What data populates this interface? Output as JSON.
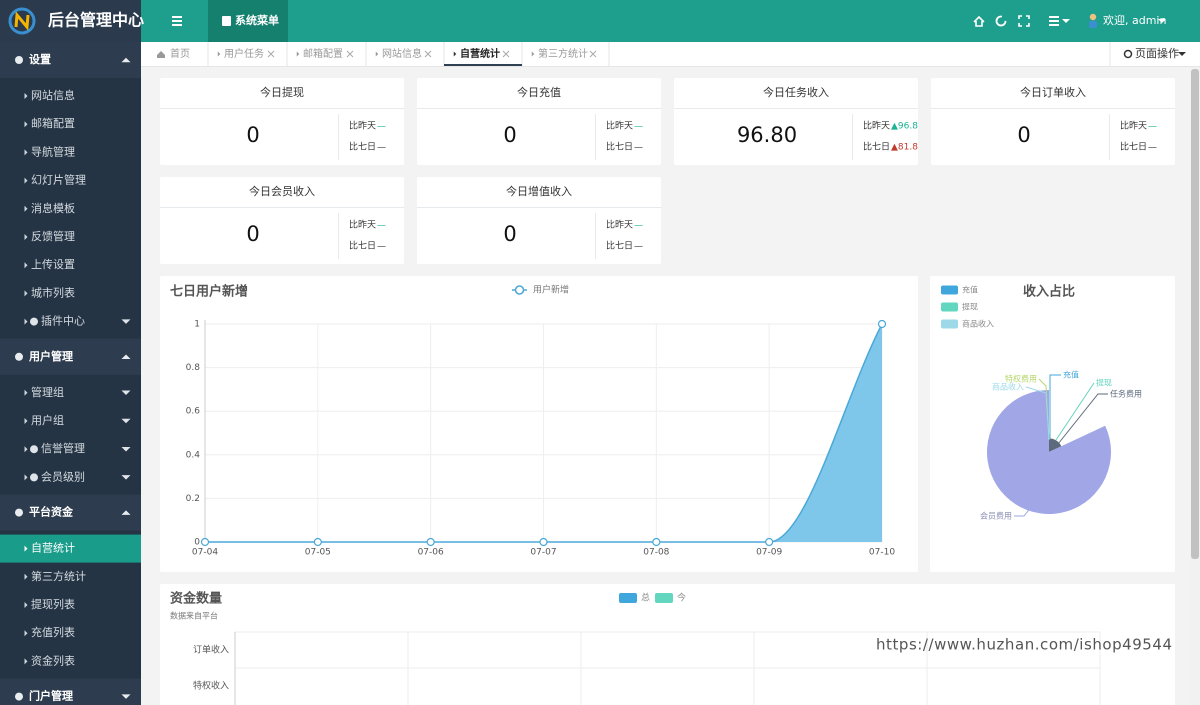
{
  "header": {
    "logo_title": "后台管理中心",
    "menu_tab": "系统菜单",
    "welcome": "欢迎, admin"
  },
  "sidebar": {
    "groups": [
      {
        "title": "设置",
        "items": [
          "网站信息",
          "邮箱配置",
          "导航管理",
          "幻灯片管理",
          "消息模板",
          "反馈管理",
          "上传设置",
          "城市列表",
          "插件中心"
        ]
      },
      {
        "title": "用户管理",
        "items": [
          "管理组",
          "用户组",
          "信誉管理",
          "会员级别"
        ]
      },
      {
        "title": "平台资金",
        "items": [
          "自营统计",
          "第三方统计",
          "提现列表",
          "充值列表",
          "资金列表"
        ]
      },
      {
        "title": "门户管理",
        "items": []
      }
    ]
  },
  "tabs": {
    "items": [
      "首页",
      "用户任务",
      "邮箱配置",
      "网站信息",
      "自营统计",
      "第三方统计"
    ],
    "actions": "页面操作"
  },
  "stat_cards": [
    {
      "title": "今日提现",
      "value": "0",
      "compare": [
        {
          "label": "比昨天",
          "value": "—",
          "color": "#1ab394"
        },
        {
          "label": "比七日",
          "value": "—",
          "color": "#333333"
        }
      ]
    },
    {
      "title": "今日充值",
      "value": "0",
      "compare": [
        {
          "label": "比昨天",
          "value": "—",
          "color": "#1ab394"
        },
        {
          "label": "比七日",
          "value": "—",
          "color": "#333333"
        }
      ]
    },
    {
      "title": "今日任务收入",
      "value": "96.80",
      "compare": [
        {
          "label": "比昨天",
          "value": "▲96.8",
          "color": "#1ab394"
        },
        {
          "label": "比七日",
          "value": "▲81.8",
          "color": "#c0392b"
        }
      ]
    },
    {
      "title": "今日订单收入",
      "value": "0",
      "compare": [
        {
          "label": "比昨天",
          "value": "—",
          "color": "#1ab394"
        },
        {
          "label": "比七日",
          "value": "—",
          "color": "#333333"
        }
      ]
    },
    {
      "title": "今日会员收入",
      "value": "0",
      "compare": [
        {
          "label": "比昨天",
          "value": "—",
          "color": "#1ab394"
        },
        {
          "label": "比七日",
          "value": "—",
          "color": "#333333"
        }
      ]
    },
    {
      "title": "今日增值收入",
      "value": "0",
      "compare": [
        {
          "label": "比昨天",
          "value": "—",
          "color": "#1ab394"
        },
        {
          "label": "比七日",
          "value": "—",
          "color": "#333333"
        }
      ]
    }
  ],
  "chart_data": [
    {
      "type": "line",
      "title": "七日用户新增",
      "categories": [
        "07-04",
        "07-05",
        "07-06",
        "07-07",
        "07-08",
        "07-09",
        "07-10"
      ],
      "series": [
        {
          "name": "用户新增",
          "color": "#4aa8d8",
          "values": [
            0,
            0,
            0,
            0,
            0,
            0,
            1
          ]
        }
      ],
      "area_color": "#78c3ea",
      "ylim": [
        0,
        1
      ],
      "yticks": [
        0,
        0.2,
        0.4,
        0.6,
        0.8,
        1
      ],
      "grid": true
    },
    {
      "type": "pie",
      "title": "收入占比",
      "rose": true,
      "legend": [
        {
          "name": "充值",
          "color": "#3fa7dc"
        },
        {
          "name": "提现",
          "color": "#62d6bf"
        },
        {
          "name": "商品收入",
          "color": "#9dd9e8"
        }
      ],
      "categories": [
        "充值",
        "提现",
        "任务费用",
        "特权费用",
        "商品收入",
        "会员费用"
      ],
      "values": [
        0,
        0,
        96.8,
        0,
        0,
        440
      ],
      "colors": [
        "#3fa7dc",
        "#62d6bf",
        "#5d6a7e",
        "#b5d66a",
        "#9dd9e8",
        "#a0a6e6"
      ]
    },
    {
      "type": "bar",
      "orientation": "horizontal",
      "title": "资金数量",
      "subtitle": "数据来自平台",
      "categories": [
        "订单收入",
        "特权收入"
      ],
      "series": [
        {
          "name": "总",
          "color": "#3fa7dc",
          "values": [
            0,
            0
          ]
        },
        {
          "name": "今",
          "color": "#62d6bf",
          "values": [
            0,
            0
          ]
        }
      ]
    }
  ],
  "watermark": "https://www.huzhan.com/ishop49544"
}
